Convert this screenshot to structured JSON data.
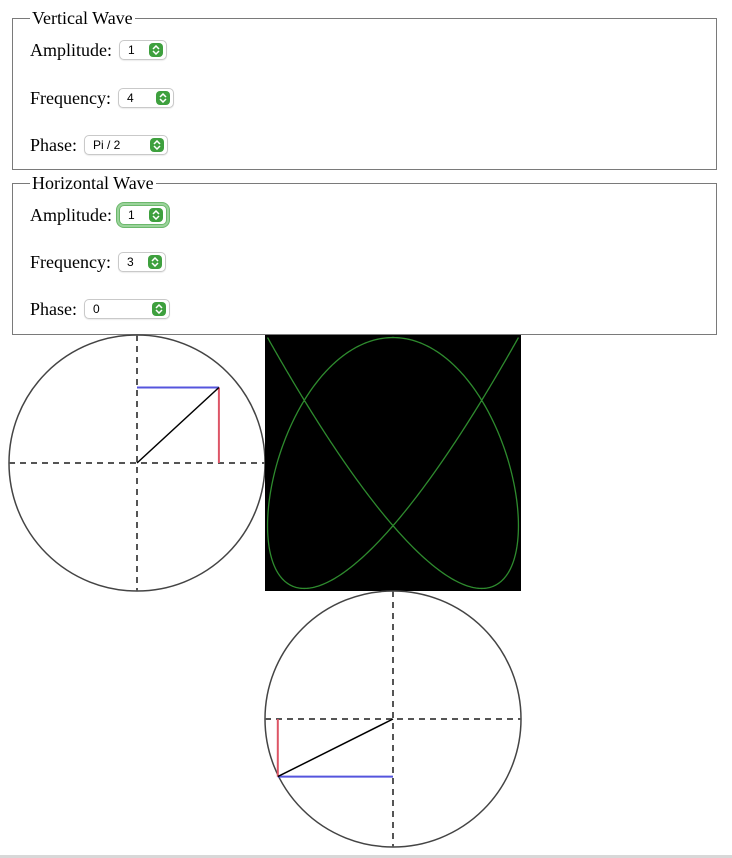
{
  "vertical": {
    "legend": "Vertical Wave",
    "amplitude": {
      "label": "Amplitude:",
      "value": "1"
    },
    "frequency": {
      "label": "Frequency:",
      "value": "4"
    },
    "phase": {
      "label": "Phase:",
      "value": "Pi / 2"
    }
  },
  "horizontal": {
    "legend": "Horizontal Wave",
    "amplitude": {
      "label": "Amplitude:",
      "value": "1"
    },
    "frequency": {
      "label": "Frequency:",
      "value": "3"
    },
    "phase": {
      "label": "Phase:",
      "value": "0"
    }
  },
  "model": {
    "vertical": {
      "amplitude": 1,
      "frequency": 4,
      "phase_rad": 1.5708
    },
    "horizontal": {
      "amplitude": 1,
      "frequency": 3,
      "phase_rad": 0
    },
    "time": 0.4
  },
  "colors": {
    "accent_green": "#3ea03e",
    "curve": "#2e8b2e",
    "vertical_line": "#5555dd",
    "horizontal_line": "#dd5566",
    "radius": "#000000",
    "canvas_bg": "#000000"
  }
}
